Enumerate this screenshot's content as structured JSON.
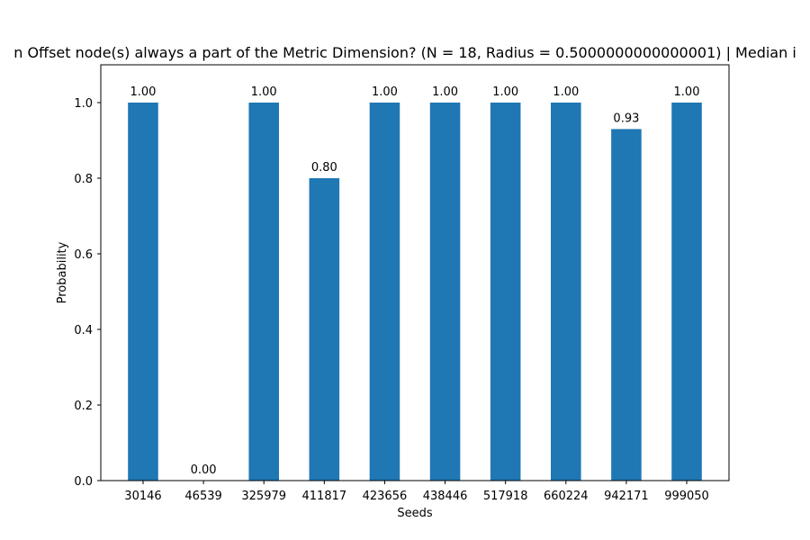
{
  "chart_data": {
    "type": "bar",
    "title": "n Offset node(s) always a part of the Metric Dimension? (N = 18, Radius = 0.5000000000000001) | Median i",
    "xlabel": "Seeds",
    "ylabel": "Probability",
    "categories": [
      "30146",
      "46539",
      "325979",
      "411817",
      "423656",
      "438446",
      "517918",
      "660224",
      "942171",
      "999050"
    ],
    "values": [
      1.0,
      0.0,
      1.0,
      0.8,
      1.0,
      1.0,
      1.0,
      1.0,
      0.93,
      1.0
    ],
    "data_labels": [
      "1.00",
      "0.00",
      "1.00",
      "0.80",
      "1.00",
      "1.00",
      "1.00",
      "1.00",
      "0.93",
      "1.00"
    ],
    "ylim": [
      0,
      1.1
    ],
    "yticks": [
      "0.0",
      "0.2",
      "0.4",
      "0.6",
      "0.8",
      "1.0"
    ],
    "grid": false,
    "bar_color": "#1f77b4"
  }
}
